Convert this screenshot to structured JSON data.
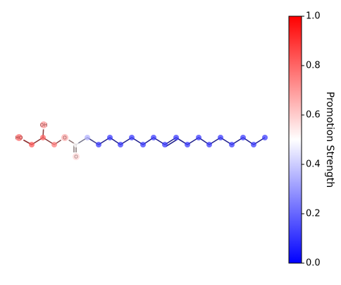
{
  "molecule": {
    "atoms": [
      {
        "label": "HO",
        "value": 0.85
      },
      {
        "value": 0.82
      },
      {
        "value": 0.8
      },
      {
        "label": "OH",
        "value": 0.75
      },
      {
        "value": 0.75
      },
      {
        "label": "O",
        "value": 0.7
      },
      {
        "value": 0.5
      },
      {
        "label": "O",
        "value": 0.6
      },
      {
        "value": 0.35
      },
      {
        "value": 0.12
      },
      {
        "value": 0.12
      },
      {
        "value": 0.12
      },
      {
        "value": 0.12
      },
      {
        "value": 0.12
      },
      {
        "value": 0.12
      },
      {
        "value": 0.12
      },
      {
        "value": 0.12
      },
      {
        "value": 0.12
      },
      {
        "value": 0.12
      },
      {
        "value": 0.12
      },
      {
        "value": 0.12
      },
      {
        "value": 0.12
      },
      {
        "value": 0.12
      },
      {
        "value": 0.12
      },
      {
        "value": 0.12
      }
    ]
  },
  "colorbar": {
    "label": "Promotion Strength",
    "lim": [
      0,
      1
    ],
    "ticks": [
      {
        "value": 0,
        "label": "0.0"
      },
      {
        "value": 0.2,
        "label": "0.2"
      },
      {
        "value": 0.4,
        "label": "0.4"
      },
      {
        "value": 0.6,
        "label": "0.6"
      },
      {
        "value": 0.8,
        "label": "0.8"
      },
      {
        "value": 1,
        "label": "1.0"
      }
    ]
  }
}
